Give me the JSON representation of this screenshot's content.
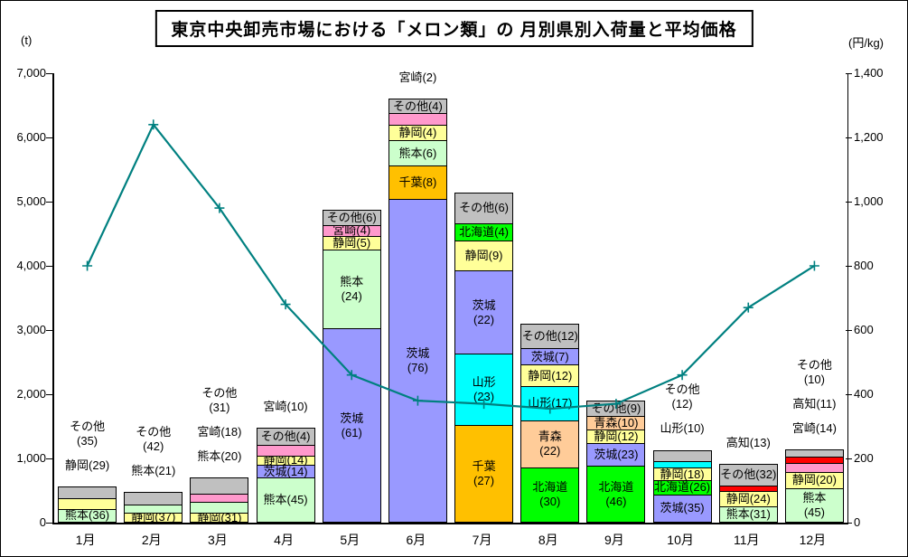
{
  "chart_data": {
    "type": "bar",
    "subtype": "stacked-bar-with-line",
    "title": "東京中央卸売市場における「メロン類」の 月別県別入荷量と平均価格",
    "left_axis": {
      "unit": "(t)",
      "min": 0,
      "max": 7000,
      "tick_labels": [
        "0",
        "1,000",
        "2,000",
        "3,000",
        "4,000",
        "5,000",
        "6,000",
        "7,000"
      ]
    },
    "right_axis": {
      "unit": "(円/kg)",
      "min": 0,
      "max": 1400,
      "tick_labels": [
        "0",
        "200",
        "400",
        "600",
        "800",
        "1,000",
        "1,200",
        "1,400"
      ]
    },
    "categories": [
      "1月",
      "2月",
      "3月",
      "4月",
      "5月",
      "6月",
      "7月",
      "8月",
      "9月",
      "10月",
      "11月",
      "12月"
    ],
    "colors": {
      "熊本": "#CCFFCC",
      "静岡": "#FFFF99",
      "その他": "#C0C0C0",
      "宮崎": "#FF99CC",
      "茨城": "#9999FF",
      "千葉": "#FFC000",
      "北海道": "#00FF00",
      "山形": "#00FFFF",
      "青森": "#FFCC99",
      "高知": "#FF0000"
    },
    "line_color": "#008080",
    "price_series": {
      "name": "平均価格",
      "unit": "円/kg",
      "values": [
        800,
        1240,
        980,
        680,
        460,
        380,
        370,
        355,
        370,
        460,
        670,
        800
      ]
    },
    "bars": [
      {
        "month": "1月",
        "total_t": 550,
        "segments": [
          {
            "pref": "熊本",
            "share": 36,
            "hfrac": 0.36,
            "label": [
              "熊本(36)"
            ]
          },
          {
            "pref": "静岡",
            "share": 29,
            "hfrac": 0.3,
            "label": null
          },
          {
            "pref": "その他",
            "share": 35,
            "hfrac": 0.34,
            "label": null
          }
        ],
        "labels_above": [
          [
            "その他",
            "(35)"
          ],
          [
            "静岡(29)"
          ]
        ]
      },
      {
        "month": "2月",
        "total_t": 460,
        "segments": [
          {
            "pref": "静岡",
            "share": 37,
            "hfrac": 0.31,
            "label": [
              "静岡(37)"
            ]
          },
          {
            "pref": "熊本",
            "share": 21,
            "hfrac": 0.26,
            "label": null
          },
          {
            "pref": "その他",
            "share": 42,
            "hfrac": 0.43,
            "label": null
          }
        ],
        "labels_above": [
          [
            "その他",
            "(42)"
          ],
          [
            "熊本(21)"
          ]
        ]
      },
      {
        "month": "3月",
        "total_t": 690,
        "segments": [
          {
            "pref": "静岡",
            "share": 31,
            "hfrac": 0.2,
            "label": [
              "静岡(31)"
            ]
          },
          {
            "pref": "熊本",
            "share": 20,
            "hfrac": 0.24,
            "label": null
          },
          {
            "pref": "宮崎",
            "share": 18,
            "hfrac": 0.2,
            "label": null
          },
          {
            "pref": "その他",
            "share": 31,
            "hfrac": 0.36,
            "label": null
          }
        ],
        "labels_above": [
          [
            "その他",
            "(31)"
          ],
          [
            "宮崎(18)"
          ],
          [
            "熊本(20)"
          ]
        ]
      },
      {
        "month": "4月",
        "total_t": 1460,
        "segments": [
          {
            "pref": "熊本",
            "share": 45,
            "hfrac": 0.47,
            "label": [
              "熊本(45)"
            ]
          },
          {
            "pref": "茨城",
            "share": 14,
            "hfrac": 0.13,
            "label": [
              "茨城(14)"
            ]
          },
          {
            "pref": "静岡",
            "share": 14,
            "hfrac": 0.1,
            "label": [
              "静岡(14)"
            ]
          },
          {
            "pref": "宮崎",
            "share": 10,
            "hfrac": 0.11,
            "label": null
          },
          {
            "pref": "その他",
            "share": 4,
            "hfrac": 0.18,
            "label": [
              "その他(4)"
            ]
          }
        ],
        "labels_above": [
          [
            "宮崎(10)"
          ]
        ]
      },
      {
        "month": "5月",
        "total_t": 4860,
        "segments": [
          {
            "pref": "茨城",
            "share": 61,
            "hfrac": 0.61,
            "label": [
              "茨城",
              "(61)"
            ]
          },
          {
            "pref": "熊本",
            "share": 24,
            "hfrac": 0.25,
            "label": [
              "熊本",
              "(24)"
            ]
          },
          {
            "pref": "静岡",
            "share": 5,
            "hfrac": 0.043,
            "label": [
              "静岡(5)"
            ]
          },
          {
            "pref": "宮崎",
            "share": 4,
            "hfrac": 0.034,
            "label": [
              "宮崎(4)"
            ]
          },
          {
            "pref": "その他",
            "share": 6,
            "hfrac": 0.048,
            "label": [
              "その他(6)"
            ]
          }
        ],
        "labels_above": []
      },
      {
        "month": "6月",
        "total_t": 6590,
        "segments": [
          {
            "pref": "茨城",
            "share": 76,
            "hfrac": 0.763,
            "label": [
              "茨城",
              "(76)"
            ]
          },
          {
            "pref": "千葉",
            "share": 8,
            "hfrac": 0.079,
            "label": [
              "千葉(8)"
            ]
          },
          {
            "pref": "熊本",
            "share": 6,
            "hfrac": 0.06,
            "label": [
              "熊本(6)"
            ]
          },
          {
            "pref": "静岡",
            "share": 4,
            "hfrac": 0.036,
            "label": [
              "静岡(4)"
            ]
          },
          {
            "pref": "宮崎",
            "share": 2,
            "hfrac": 0.028,
            "label": null
          },
          {
            "pref": "その他",
            "share": 4,
            "hfrac": 0.034,
            "label": [
              "その他(4)"
            ]
          }
        ],
        "labels_above": [
          [
            "宮崎(2)"
          ]
        ]
      },
      {
        "month": "7月",
        "total_t": 5130,
        "segments": [
          {
            "pref": "千葉",
            "share": 27,
            "hfrac": 0.294,
            "label": [
              "千葉",
              "(27)"
            ]
          },
          {
            "pref": "山形",
            "share": 23,
            "hfrac": 0.217,
            "label": [
              "山形",
              "(23)"
            ]
          },
          {
            "pref": "茨城",
            "share": 22,
            "hfrac": 0.253,
            "label": [
              "茨城",
              "(22)"
            ]
          },
          {
            "pref": "静岡",
            "share": 9,
            "hfrac": 0.091,
            "label": [
              "静岡(9)"
            ]
          },
          {
            "pref": "北海道",
            "share": 4,
            "hfrac": 0.052,
            "label": [
              "北海道(4)"
            ]
          },
          {
            "pref": "その他",
            "share": 6,
            "hfrac": 0.094,
            "label": [
              "その他(6)"
            ]
          }
        ],
        "labels_above": []
      },
      {
        "month": "8月",
        "total_t": 3080,
        "segments": [
          {
            "pref": "北海道",
            "share": 30,
            "hfrac": 0.276,
            "label": [
              "北海道",
              "(30)"
            ]
          },
          {
            "pref": "青森",
            "share": 22,
            "hfrac": 0.236,
            "label": [
              "青森",
              "(22)"
            ]
          },
          {
            "pref": "山形",
            "share": 17,
            "hfrac": 0.175,
            "label": [
              "山形(17)"
            ]
          },
          {
            "pref": "静岡",
            "share": 12,
            "hfrac": 0.107,
            "label": [
              "静岡(12)"
            ]
          },
          {
            "pref": "茨城",
            "share": 7,
            "hfrac": 0.084,
            "label": [
              "茨城(7)"
            ]
          },
          {
            "pref": "その他",
            "share": 12,
            "hfrac": 0.122,
            "label": [
              "その他(12)"
            ]
          }
        ],
        "labels_above": []
      },
      {
        "month": "9月",
        "total_t": 1890,
        "segments": [
          {
            "pref": "北海道",
            "share": 46,
            "hfrac": 0.46,
            "label": [
              "北海道",
              "(46)"
            ]
          },
          {
            "pref": "茨城",
            "share": 23,
            "hfrac": 0.187,
            "label": [
              "茨城(23)"
            ]
          },
          {
            "pref": "静岡",
            "share": 12,
            "hfrac": 0.112,
            "label": [
              "静岡(12)"
            ]
          },
          {
            "pref": "青森",
            "share": 10,
            "hfrac": 0.112,
            "label": [
              "青森(10)"
            ]
          },
          {
            "pref": "その他",
            "share": 9,
            "hfrac": 0.129,
            "label": [
              "その他(9)"
            ]
          }
        ],
        "labels_above": []
      },
      {
        "month": "10月",
        "total_t": 1120,
        "segments": [
          {
            "pref": "茨城",
            "share": 35,
            "hfrac": 0.38,
            "label": [
              "茨城(35)"
            ]
          },
          {
            "pref": "北海道",
            "share": 26,
            "hfrac": 0.2,
            "label": [
              "北海道(26)"
            ]
          },
          {
            "pref": "静岡",
            "share": 18,
            "hfrac": 0.172,
            "label": [
              "静岡(18)"
            ]
          },
          {
            "pref": "山形",
            "share": 10,
            "hfrac": 0.088,
            "label": null
          },
          {
            "pref": "その他",
            "share": 12,
            "hfrac": 0.16,
            "label": null
          }
        ],
        "labels_above": [
          [
            "その他",
            "(12)"
          ],
          [
            "山形(10)"
          ]
        ]
      },
      {
        "month": "11月",
        "total_t": 900,
        "segments": [
          {
            "pref": "熊本",
            "share": 31,
            "hfrac": 0.267,
            "label": [
              "熊本(31)"
            ]
          },
          {
            "pref": "静岡",
            "share": 24,
            "hfrac": 0.262,
            "label": [
              "静岡(24)"
            ]
          },
          {
            "pref": "高知",
            "share": 13,
            "hfrac": 0.104,
            "label": null
          },
          {
            "pref": "その他",
            "share": 32,
            "hfrac": 0.367,
            "label": [
              "その他(32)"
            ]
          }
        ],
        "labels_above": [
          [
            "高知(13)"
          ]
        ]
      },
      {
        "month": "12月",
        "total_t": 1130,
        "segments": [
          {
            "pref": "熊本",
            "share": 45,
            "hfrac": 0.46,
            "label": [
              "熊本",
              "(45)"
            ]
          },
          {
            "pref": "静岡",
            "share": 20,
            "hfrac": 0.228,
            "label": [
              "静岡(20)"
            ]
          },
          {
            "pref": "宮崎",
            "share": 14,
            "hfrac": 0.125,
            "label": null
          },
          {
            "pref": "高知",
            "share": 11,
            "hfrac": 0.083,
            "label": null
          },
          {
            "pref": "その他",
            "share": 10,
            "hfrac": 0.103,
            "label": null
          }
        ],
        "labels_above": [
          [
            "その他",
            "(10)"
          ],
          [
            "高知(11)"
          ],
          [
            "宮崎(14)"
          ]
        ]
      }
    ]
  }
}
